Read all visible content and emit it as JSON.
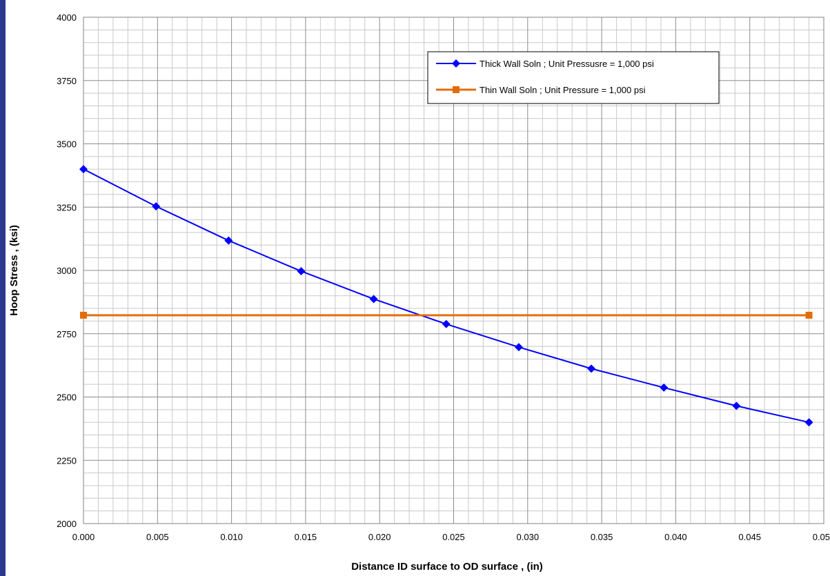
{
  "chart_data": {
    "type": "line",
    "xlabel": "Distance ID surface to OD surface , (in)",
    "ylabel": "Hoop Stress , (ksi)",
    "xlim": [
      0,
      0.05
    ],
    "ylim": [
      2000,
      4000
    ],
    "x_ticks": [
      "0.000",
      "0.005",
      "0.010",
      "0.015",
      "0.020",
      "0.025",
      "0.030",
      "0.035",
      "0.040",
      "0.045",
      "0.050"
    ],
    "y_ticks": [
      "2000",
      "2250",
      "2500",
      "2750",
      "3000",
      "3250",
      "3500",
      "3750",
      "4000"
    ],
    "grid": true,
    "legend_position": "top-right",
    "series": [
      {
        "name": "Thick Wall Soln ; Unit Pressusre = 1,000  psi",
        "color": "#0000ff",
        "marker": "diamond",
        "x": [
          0.0,
          0.0049,
          0.0098,
          0.0147,
          0.0196,
          0.0245,
          0.0294,
          0.0343,
          0.0392,
          0.0441,
          0.049
        ],
        "y": [
          3400,
          3253,
          3118,
          2997,
          2887,
          2788,
          2697,
          2612,
          2537,
          2465,
          2400
        ]
      },
      {
        "name": "Thin Wall Soln ; Unit Pressure = 1,000 psi",
        "color": "#e36c0a",
        "marker": "square",
        "x": [
          0.0,
          0.049
        ],
        "y": [
          2823,
          2823
        ]
      }
    ]
  }
}
